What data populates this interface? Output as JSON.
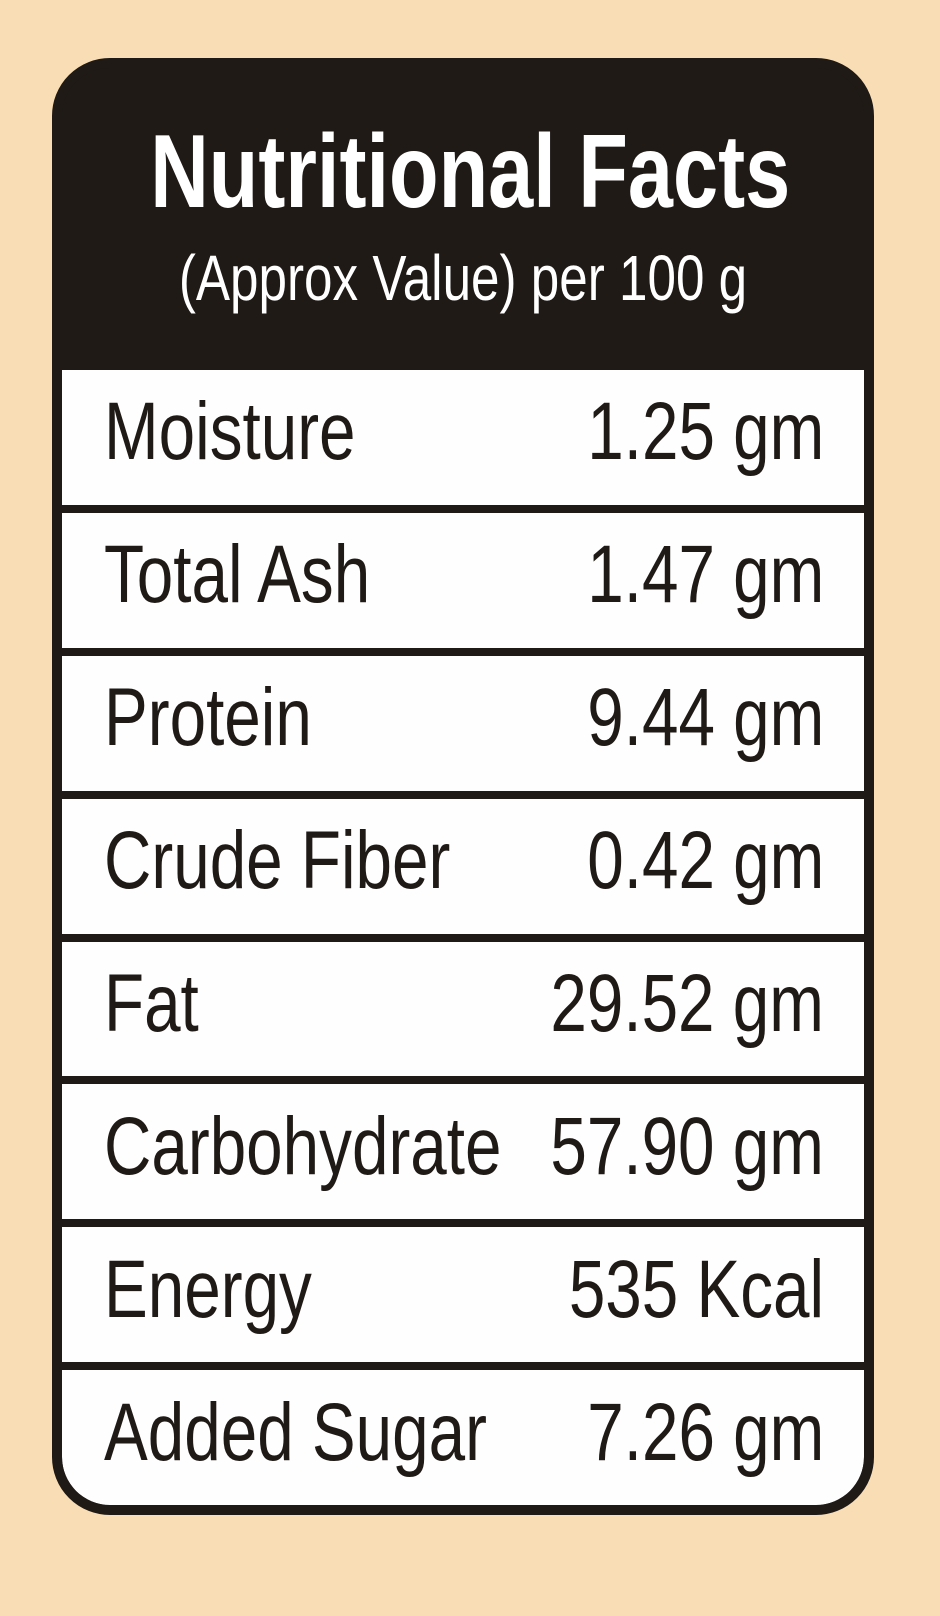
{
  "header": {
    "title": "Nutritional Facts",
    "subtitle": "(Approx Value) per 100 g"
  },
  "rows": [
    {
      "label": "Moisture",
      "value": "1.25 gm"
    },
    {
      "label": "Total Ash",
      "value": "1.47 gm"
    },
    {
      "label": "Protein",
      "value": "9.44 gm"
    },
    {
      "label": "Crude Fiber",
      "value": "0.42 gm"
    },
    {
      "label": "Fat",
      "value": "29.52 gm"
    },
    {
      "label": "Carbohydrate",
      "value": "57.90 gm"
    },
    {
      "label": "Energy",
      "value": "535 Kcal"
    },
    {
      "label": "Added Sugar",
      "value": "7.26 gm"
    }
  ],
  "colors": {
    "background": "#f9ddb5",
    "header": "#1f1a16",
    "row": "#fefefe"
  }
}
